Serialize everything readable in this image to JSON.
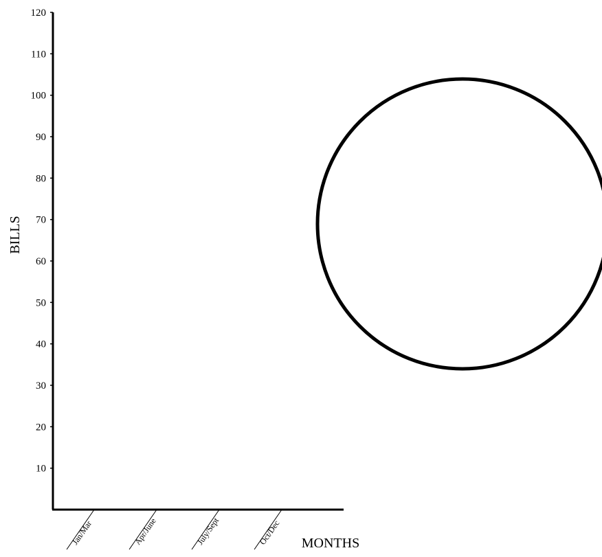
{
  "chart_data": {
    "type": "bar",
    "title": "",
    "xlabel": "MONTHS",
    "ylabel": "BILLS",
    "categories": [
      "Jan/Mar",
      "Apr/June",
      "July/Sept",
      "Oct/Dec"
    ],
    "y_ticks": [
      "10",
      "20",
      "30",
      "40",
      "50",
      "60",
      "70",
      "80",
      "90",
      "100",
      "110",
      "120"
    ],
    "ylim": [
      0,
      120
    ],
    "series": [],
    "grid": false,
    "legend": "none",
    "colors": {
      "axis": "#000000",
      "circle": "#000000",
      "background": "#ffffff"
    }
  }
}
